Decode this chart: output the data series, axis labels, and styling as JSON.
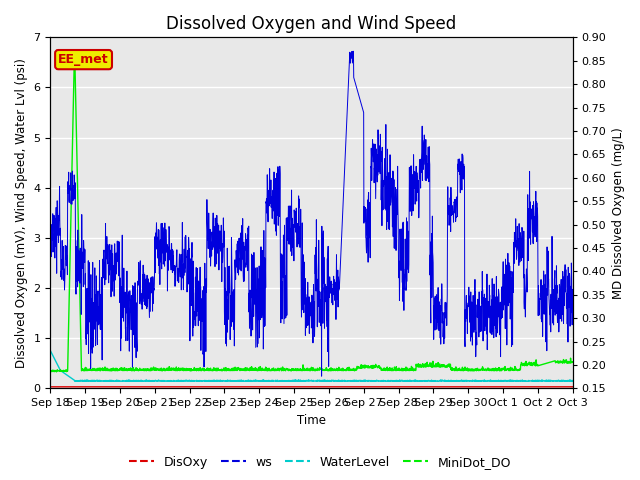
{
  "title": "Dissolved Oxygen and Wind Speed",
  "xlabel": "Time",
  "ylabel_left": "Dissolved Oxygen (mV), Wind Speed, Water Lvl (psi)",
  "ylabel_right": "MD Dissolved Oxygen (mg/L)",
  "ylim_left": [
    0.0,
    7.0
  ],
  "ylim_right": [
    0.15,
    0.9
  ],
  "annotation_text": "EE_met",
  "annotation_color": "#cc0000",
  "annotation_bg": "#eeee00",
  "annotation_border": "#cc0000",
  "bg_color": "#e8e8e8",
  "grid_color": "white",
  "title_fontsize": 12,
  "label_fontsize": 8.5,
  "tick_fontsize": 8,
  "legend_fontsize": 9,
  "series_colors": {
    "DisOxy": "#dd0000",
    "ws": "#0000dd",
    "WaterLevel": "#00cccc",
    "MiniDot_DO": "#00ee00"
  },
  "xtick_labels": [
    "Sep 18",
    "Sep 19",
    "Sep 20",
    "Sep 21",
    "Sep 22",
    "Sep 23",
    "Sep 24",
    "Sep 25",
    "Sep 26",
    "Sep 27",
    "Sep 28",
    "Sep 29",
    "Sep 30",
    "Oct 1",
    "Oct 2",
    "Oct 3"
  ],
  "n_points": 2000
}
